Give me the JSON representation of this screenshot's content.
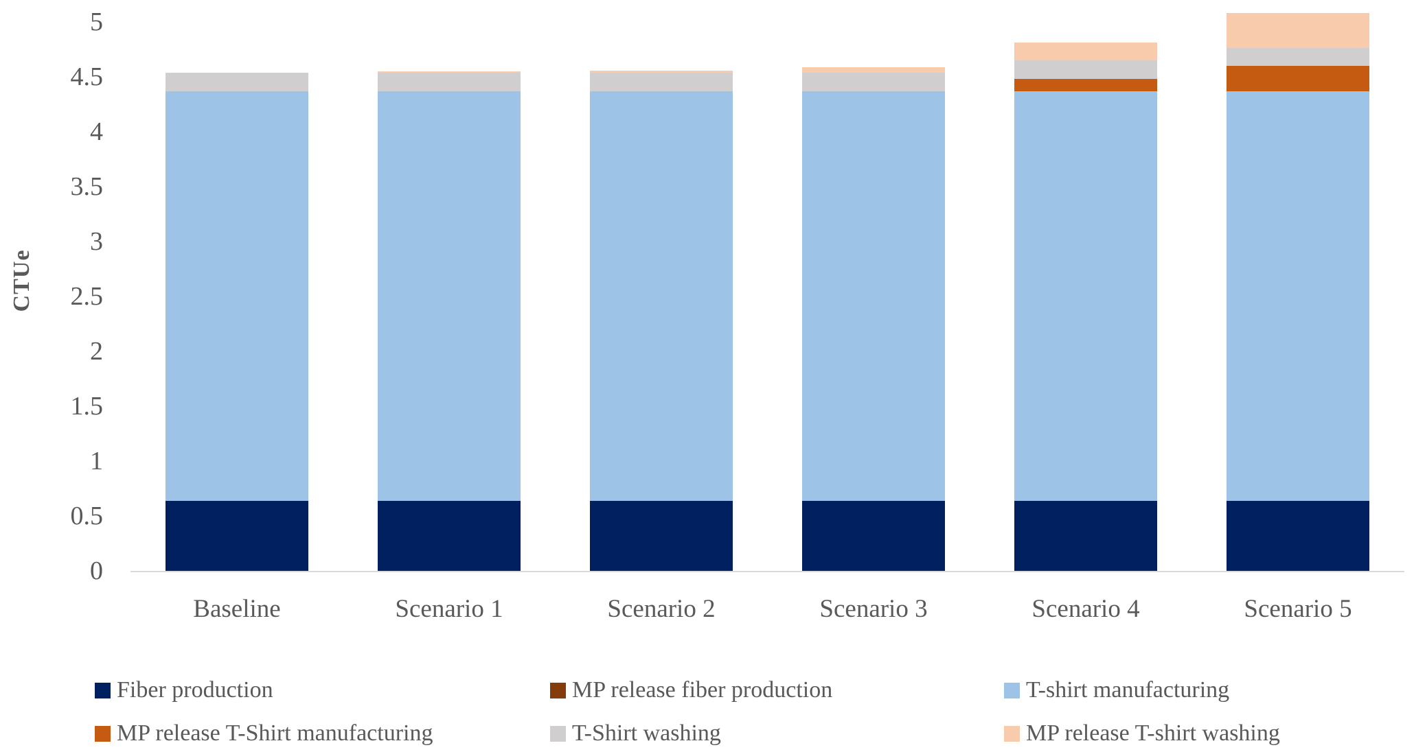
{
  "chart_data": {
    "type": "bar",
    "stacked": true,
    "title": "",
    "xlabel": "",
    "ylabel": "CTUe",
    "categories": [
      "Baseline",
      "Scenario 1",
      "Scenario 2",
      "Scenario 3",
      "Scenario 4",
      "Scenario 5"
    ],
    "series": [
      {
        "name": "Fiber production",
        "color": "#002060",
        "values": [
          0.64,
          0.64,
          0.64,
          0.64,
          0.64,
          0.64
        ]
      },
      {
        "name": "MP release fiber production",
        "color": "#843C0C",
        "values": [
          0,
          0,
          0,
          0,
          0,
          0
        ]
      },
      {
        "name": "T-shirt manufacturing",
        "color": "#9DC3E6",
        "values": [
          3.73,
          3.73,
          3.73,
          3.73,
          3.73,
          3.73
        ]
      },
      {
        "name": "MP release T-Shirt manufacturing",
        "color": "#C55A11",
        "values": [
          0,
          0,
          0,
          0,
          0.11,
          0.23
        ]
      },
      {
        "name": "T-Shirt washing",
        "color": "#D0CECE",
        "values": [
          0.17,
          0.17,
          0.17,
          0.17,
          0.17,
          0.16
        ]
      },
      {
        "name": "MP release T-shirt washing",
        "color": "#F8CBAD",
        "values": [
          0,
          0.01,
          0.02,
          0.05,
          0.16,
          0.32
        ]
      }
    ],
    "totals": [
      4.54,
      4.55,
      4.56,
      4.59,
      4.81,
      5.08
    ],
    "yticks": [
      0,
      0.5,
      1,
      1.5,
      2,
      2.5,
      3,
      3.5,
      4,
      4.5,
      5
    ],
    "ylim": [
      0,
      5
    ],
    "grid": false,
    "legend_position": "bottom",
    "legend_rows": [
      [
        "Fiber production",
        "MP release fiber production",
        "T-shirt manufacturing"
      ],
      [
        "MP release T-Shirt manufacturing",
        "T-Shirt washing",
        "MP release T-shirt washing"
      ]
    ]
  },
  "style": {
    "text_color": "#595959",
    "axis_line_color": "#D9D9D9",
    "background": "#FFFFFF"
  }
}
